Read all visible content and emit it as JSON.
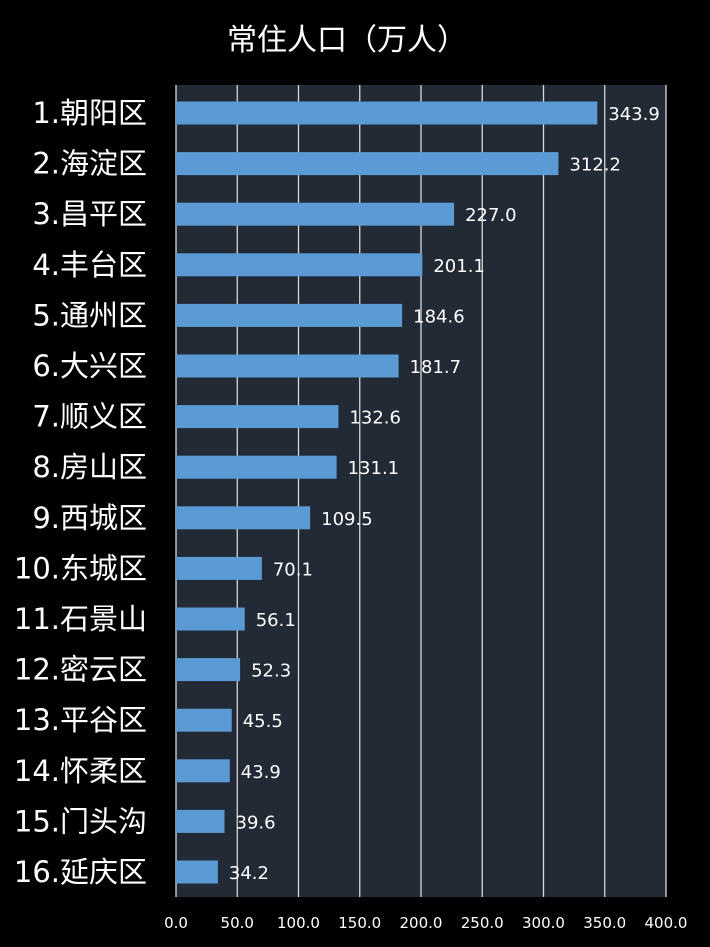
{
  "chart_data": {
    "type": "bar",
    "orientation": "horizontal",
    "title": "常住人口（万人）",
    "xlabel": "",
    "ylabel": "",
    "categories": [
      "1.朝阳区",
      "2.海淀区",
      "3.昌平区",
      "4.丰台区",
      "5.通州区",
      "6.大兴区",
      "7.顺义区",
      "8.房山区",
      "9.西城区",
      "10.东城区",
      "11.石景山",
      "12.密云区",
      "13.平谷区",
      "14.怀柔区",
      "15.门头沟",
      "16.延庆区"
    ],
    "values": [
      343.9,
      312.2,
      227.0,
      201.1,
      184.6,
      181.7,
      132.6,
      131.1,
      109.5,
      70.1,
      56.1,
      52.3,
      45.5,
      43.9,
      39.6,
      34.2
    ],
    "data_labels": [
      "343.9",
      "312.2",
      "227.0",
      "201.1",
      "184.6",
      "181.7",
      "132.6",
      "131.1",
      "109.5",
      "70.1",
      "56.1",
      "52.3",
      "45.5",
      "43.9",
      "39.6",
      "34.2"
    ],
    "xlim": [
      0,
      400
    ],
    "x_ticks": [
      0,
      50,
      100,
      150,
      200,
      250,
      300,
      350,
      400
    ],
    "x_tick_labels": [
      "0.0",
      "50.0",
      "100.0",
      "150.0",
      "200.0",
      "250.0",
      "300.0",
      "350.0",
      "400.0"
    ],
    "grid": true,
    "legend": "none",
    "colors": {
      "background": "#000000",
      "plot_area": "#222a36",
      "bar": "#5b9bd5",
      "grid": "#d9d9d9",
      "text": "#ffffff"
    }
  }
}
